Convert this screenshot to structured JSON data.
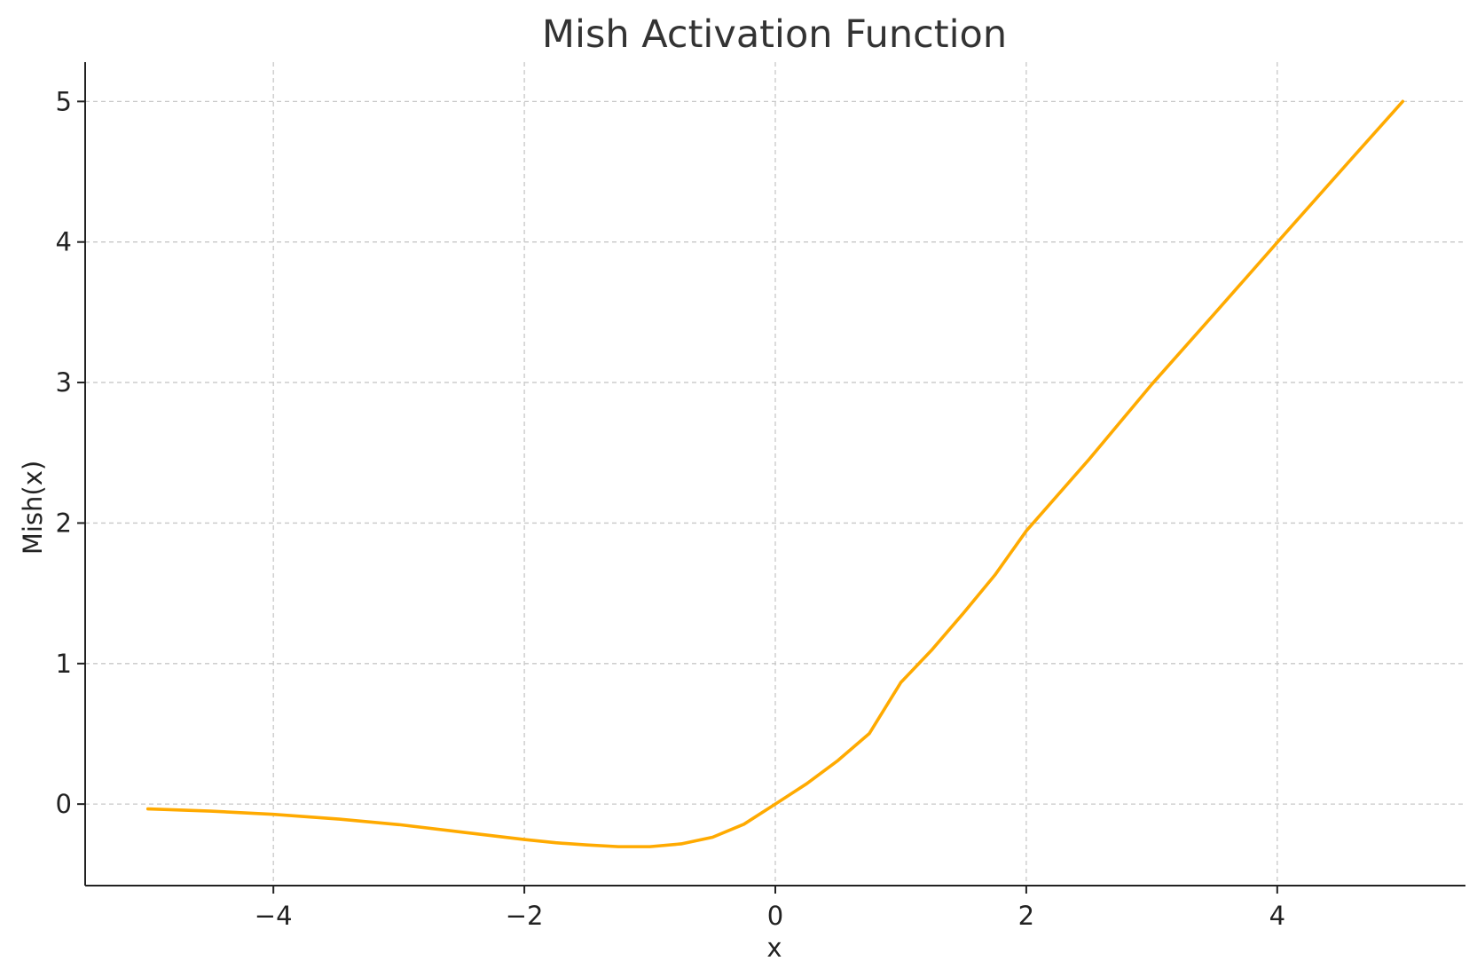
{
  "chart_data": {
    "type": "line",
    "title": "Mish Activation Function",
    "xlabel": "x",
    "ylabel": "Mish(x)",
    "xlim": [
      -5.5,
      5.5
    ],
    "ylim": [
      -0.58,
      5.28
    ],
    "xticks": [
      -4,
      -2,
      0,
      2,
      4
    ],
    "xtick_labels": [
      "−4",
      "−2",
      "0",
      "2",
      "4"
    ],
    "yticks": [
      0,
      1,
      2,
      3,
      4,
      5
    ],
    "ytick_labels": [
      "0",
      "1",
      "2",
      "3",
      "4",
      "5"
    ],
    "grid": true,
    "legend": "none",
    "series": [
      {
        "color": "#FFAA00",
        "x": [
          -5,
          -4.5,
          -4,
          -3.5,
          -3,
          -2.5,
          -2,
          -1.75,
          -1.5,
          -1.25,
          -1,
          -0.75,
          -0.5,
          -0.25,
          0,
          0.25,
          0.5,
          0.75,
          1,
          1.25,
          1.5,
          1.75,
          2,
          2.5,
          3,
          3.5,
          4,
          4.5,
          5
        ],
        "y": [
          -0.034,
          -0.05,
          -0.073,
          -0.105,
          -0.146,
          -0.199,
          -0.252,
          -0.275,
          -0.291,
          -0.303,
          -0.303,
          -0.283,
          -0.236,
          -0.143,
          0,
          0.145,
          0.311,
          0.503,
          0.865,
          1.1,
          1.36,
          1.63,
          1.944,
          2.453,
          2.987,
          3.49,
          3.997,
          4.5,
          5.0
        ]
      }
    ]
  }
}
